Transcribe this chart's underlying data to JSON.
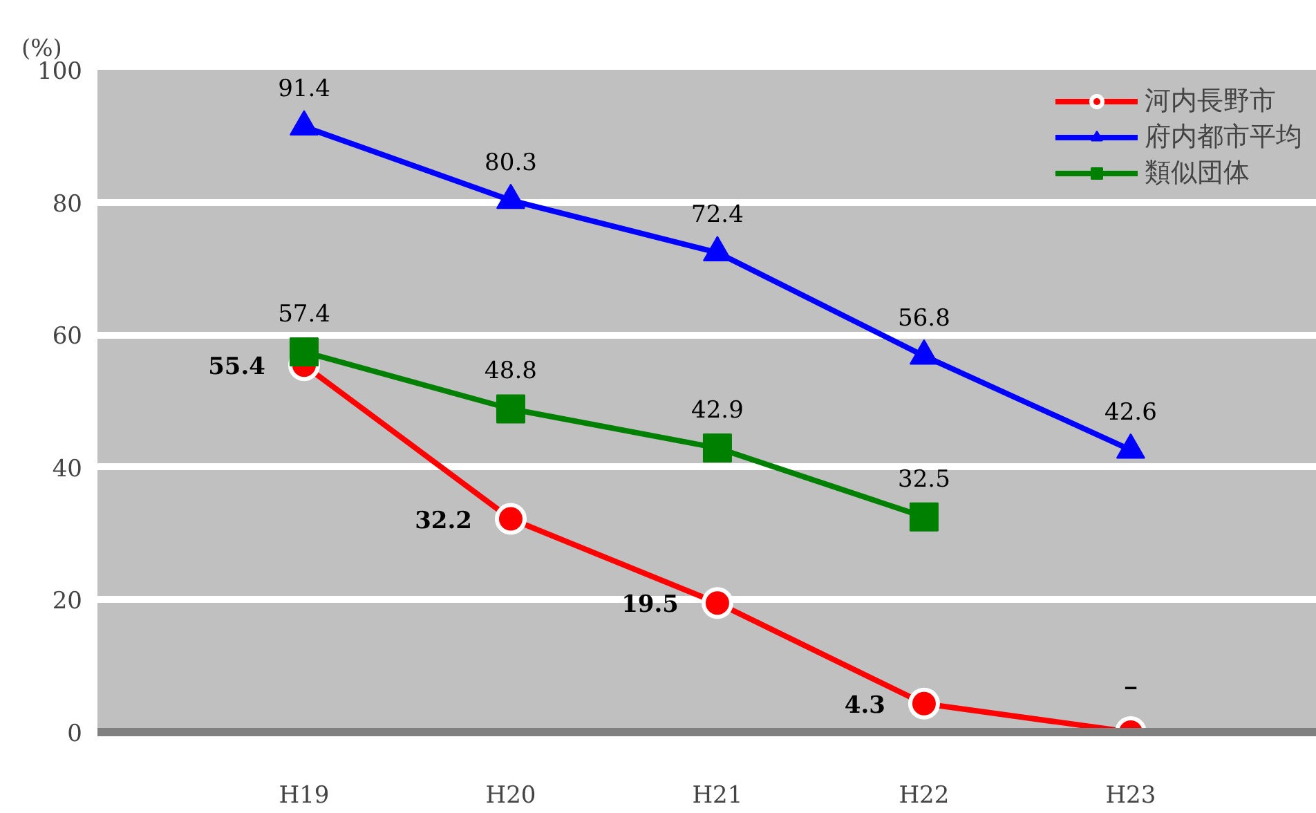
{
  "chart_data": {
    "type": "line",
    "ylabel": "(%)",
    "categories": [
      "H19",
      "H20",
      "H21",
      "H22",
      "H23"
    ],
    "ylim": [
      0,
      100
    ],
    "yticks": [
      0,
      20,
      40,
      60,
      80,
      100
    ],
    "grid": "y",
    "legend": "top right",
    "series": [
      {
        "name": "河内長野市",
        "color": "#ff0000",
        "marker": "circle",
        "values": [
          55.4,
          32.2,
          19.5,
          4.3,
          0
        ],
        "value_labels": [
          "55.4",
          "32.2",
          "19.5",
          "4.3",
          "－"
        ]
      },
      {
        "name": "府内都市平均",
        "color": "#0000ff",
        "marker": "triangle",
        "values": [
          91.4,
          80.3,
          72.4,
          56.8,
          42.6
        ],
        "value_labels": [
          "91.4",
          "80.3",
          "72.4",
          "56.8",
          "42.6"
        ]
      },
      {
        "name": "類似団体",
        "color": "#008000",
        "marker": "square",
        "values": [
          57.4,
          48.8,
          42.9,
          32.5,
          null
        ],
        "value_labels": [
          "57.4",
          "48.8",
          "42.9",
          "32.5",
          null
        ]
      }
    ]
  }
}
